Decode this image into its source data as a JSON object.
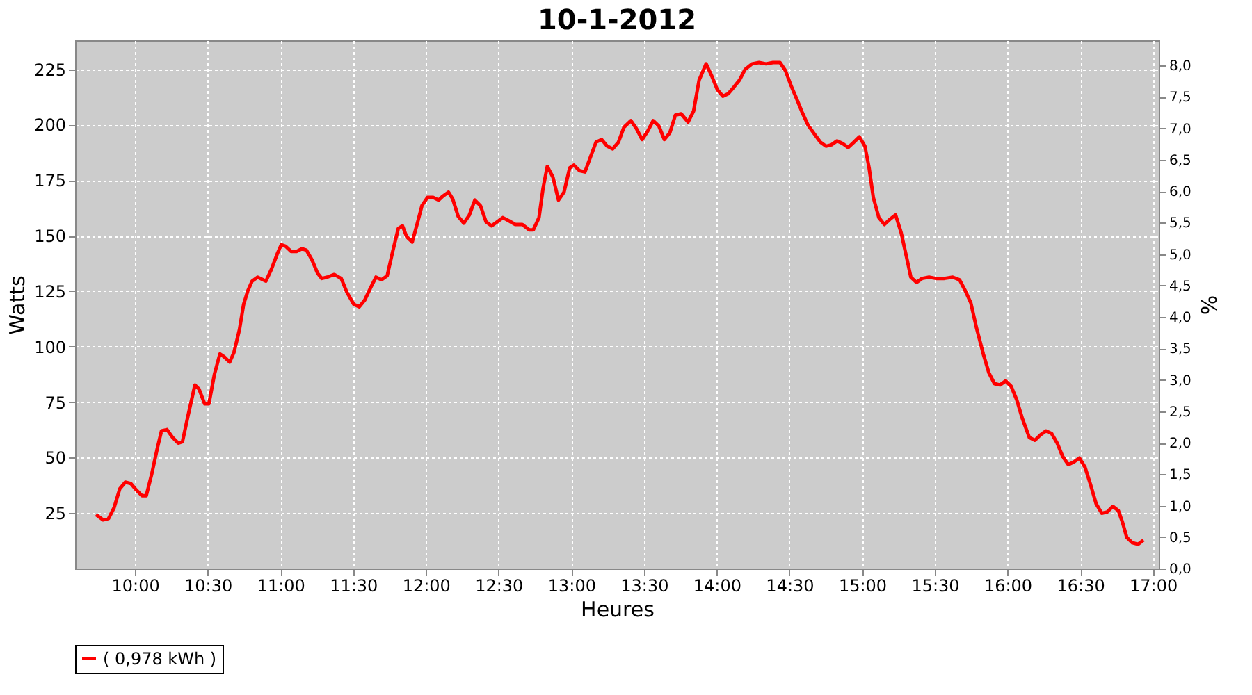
{
  "chart_data": {
    "type": "line",
    "title": "10-1-2012",
    "xlabel": "Heures",
    "ylabel": "Watts",
    "y2label": "%",
    "xlim": [
      9.588,
      17.04
    ],
    "xticks": [
      {
        "value": 10,
        "label": "10:00"
      },
      {
        "value": 10.5,
        "label": "10:30"
      },
      {
        "value": 11,
        "label": "11:00"
      },
      {
        "value": 11.5,
        "label": "11:30"
      },
      {
        "value": 12,
        "label": "12:00"
      },
      {
        "value": 12.5,
        "label": "12:30"
      },
      {
        "value": 13,
        "label": "13:00"
      },
      {
        "value": 13.5,
        "label": "13:30"
      },
      {
        "value": 14,
        "label": "14:00"
      },
      {
        "value": 14.5,
        "label": "14:30"
      },
      {
        "value": 15,
        "label": "15:00"
      },
      {
        "value": 15.5,
        "label": "15:30"
      },
      {
        "value": 16,
        "label": "16:00"
      },
      {
        "value": 16.5,
        "label": "16:30"
      },
      {
        "value": 17,
        "label": "17:00"
      }
    ],
    "ylim": [
      0,
      238
    ],
    "yticks": [
      25,
      50,
      75,
      100,
      125,
      150,
      175,
      200,
      225
    ],
    "y2lim": [
      0,
      8.4
    ],
    "y2ticks": [
      {
        "value": 0,
        "label": "0,0"
      },
      {
        "value": 0.5,
        "label": "0,5"
      },
      {
        "value": 1,
        "label": "1,0"
      },
      {
        "value": 1.5,
        "label": "1,5"
      },
      {
        "value": 2,
        "label": "2,0"
      },
      {
        "value": 2.5,
        "label": "2,5"
      },
      {
        "value": 3,
        "label": "3,0"
      },
      {
        "value": 3.5,
        "label": "3,5"
      },
      {
        "value": 4,
        "label": "4,0"
      },
      {
        "value": 4.5,
        "label": "4,5"
      },
      {
        "value": 5,
        "label": "5,0"
      },
      {
        "value": 5.5,
        "label": "5,5"
      },
      {
        "value": 6,
        "label": "6,0"
      },
      {
        "value": 6.5,
        "label": "6,5"
      },
      {
        "value": 7,
        "label": "7,0"
      },
      {
        "value": 7.5,
        "label": "7,5"
      },
      {
        "value": 8,
        "label": "8,0"
      }
    ],
    "grid": true,
    "legend": "bottom",
    "marker": "none",
    "line_style": "solid",
    "x": [
      9.732,
      9.78,
      9.818,
      9.856,
      9.895,
      9.933,
      9.971,
      10.01,
      10.048,
      10.077,
      10.115,
      10.153,
      10.182,
      10.22,
      10.259,
      10.297,
      10.326,
      10.364,
      10.412,
      10.44,
      10.479,
      10.508,
      10.546,
      10.584,
      10.613,
      10.651,
      10.68,
      10.718,
      10.747,
      10.776,
      10.805,
      10.843,
      10.9,
      10.939,
      10.977,
      11.006,
      11.034,
      11.073,
      11.111,
      11.149,
      11.178,
      11.216,
      11.255,
      11.284,
      11.322,
      11.37,
      11.418,
      11.456,
      11.504,
      11.542,
      11.58,
      11.619,
      11.657,
      11.695,
      11.734,
      11.772,
      11.81,
      11.839,
      11.868,
      11.906,
      11.944,
      11.973,
      12.011,
      12.05,
      12.088,
      12.117,
      12.155,
      12.184,
      12.222,
      12.261,
      12.299,
      12.337,
      12.375,
      12.414,
      12.452,
      12.49,
      12.529,
      12.567,
      12.615,
      12.663,
      12.711,
      12.739,
      12.778,
      12.806,
      12.835,
      12.874,
      12.912,
      12.95,
      12.989,
      13.017,
      13.056,
      13.094,
      13.132,
      13.17,
      13.209,
      13.247,
      13.285,
      13.324,
      13.362,
      13.41,
      13.448,
      13.487,
      13.525,
      13.563,
      13.602,
      13.64,
      13.678,
      13.716,
      13.755,
      13.803,
      13.841,
      13.879,
      13.927,
      13.966,
      14.004,
      14.042,
      14.08,
      14.119,
      14.157,
      14.195,
      14.243,
      14.291,
      14.339,
      14.387,
      14.435,
      14.473,
      14.511,
      14.55,
      14.588,
      14.626,
      14.665,
      14.713,
      14.751,
      14.789,
      14.828,
      14.866,
      14.904,
      14.943,
      14.981,
      15.019,
      15.048,
      15.077,
      15.115,
      15.153,
      15.192,
      15.23,
      15.268,
      15.307,
      15.335,
      15.374,
      15.412,
      15.46,
      15.508,
      15.565,
      15.623,
      15.67,
      15.709,
      15.747,
      15.785,
      15.833,
      15.872,
      15.91,
      15.948,
      15.987,
      16.025,
      16.063,
      16.102,
      16.15,
      16.188,
      16.226,
      16.264,
      16.303,
      16.341,
      16.379,
      16.418,
      16.456,
      16.494,
      16.533,
      16.571,
      16.609,
      16.648,
      16.686,
      16.724,
      16.762,
      16.791,
      16.82,
      16.858,
      16.897,
      16.935
    ],
    "series": [
      {
        "name": "( 0,978 kWh )",
        "color": "#ff0000",
        "values": [
          24.3,
          21.9,
          22.5,
          27.4,
          35.9,
          38.9,
          38.3,
          35.3,
          32.8,
          32.8,
          42.6,
          54.1,
          62.0,
          62.6,
          59.0,
          56.5,
          57.1,
          68.7,
          82.7,
          80.9,
          74.2,
          74.2,
          87.5,
          96.7,
          95.4,
          93.0,
          97.3,
          107.6,
          119.1,
          125.2,
          129.5,
          131.3,
          129.5,
          135.0,
          141.6,
          145.9,
          145.3,
          142.9,
          142.9,
          144.1,
          143.5,
          139.2,
          133.1,
          130.7,
          131.3,
          132.5,
          130.7,
          124.6,
          119.1,
          117.9,
          121.0,
          126.4,
          131.3,
          130.1,
          131.9,
          142.9,
          153.2,
          154.4,
          149.5,
          147.1,
          156.2,
          163.5,
          167.2,
          167.2,
          166.0,
          167.8,
          169.6,
          166.6,
          158.7,
          155.6,
          159.3,
          166.0,
          163.5,
          156.2,
          154.4,
          156.2,
          158.1,
          156.8,
          155.0,
          155.0,
          152.6,
          152.6,
          158.1,
          171.4,
          181.2,
          176.3,
          166.0,
          169.6,
          180.5,
          181.8,
          179.3,
          178.7,
          185.4,
          192.1,
          193.3,
          190.3,
          189.1,
          192.1,
          198.8,
          201.8,
          198.2,
          193.3,
          197.0,
          201.8,
          199.4,
          193.3,
          196.4,
          204.3,
          204.9,
          201.2,
          206.1,
          220.1,
          227.4,
          221.9,
          215.8,
          212.8,
          214.0,
          217.0,
          220.1,
          224.9,
          227.4,
          228.0,
          227.4,
          228.0,
          228.0,
          224.3,
          217.6,
          211.6,
          205.5,
          200.0,
          196.4,
          192.1,
          190.3,
          190.9,
          192.7,
          191.5,
          189.7,
          192.1,
          194.5,
          190.3,
          180.5,
          167.2,
          158.1,
          155.0,
          157.4,
          159.3,
          151.4,
          139.8,
          131.3,
          128.9,
          130.7,
          131.3,
          130.7,
          130.7,
          131.3,
          130.1,
          125.2,
          119.8,
          108.8,
          96.7,
          88.1,
          83.3,
          82.7,
          84.5,
          82.1,
          76.0,
          67.5,
          59.0,
          57.8,
          60.2,
          62.0,
          60.8,
          56.5,
          50.5,
          46.8,
          48.0,
          49.8,
          45.6,
          37.7,
          29.2,
          24.9,
          25.5,
          28.0,
          26.1,
          20.7,
          14.0,
          11.6,
          10.9,
          12.8
        ]
      }
    ]
  }
}
